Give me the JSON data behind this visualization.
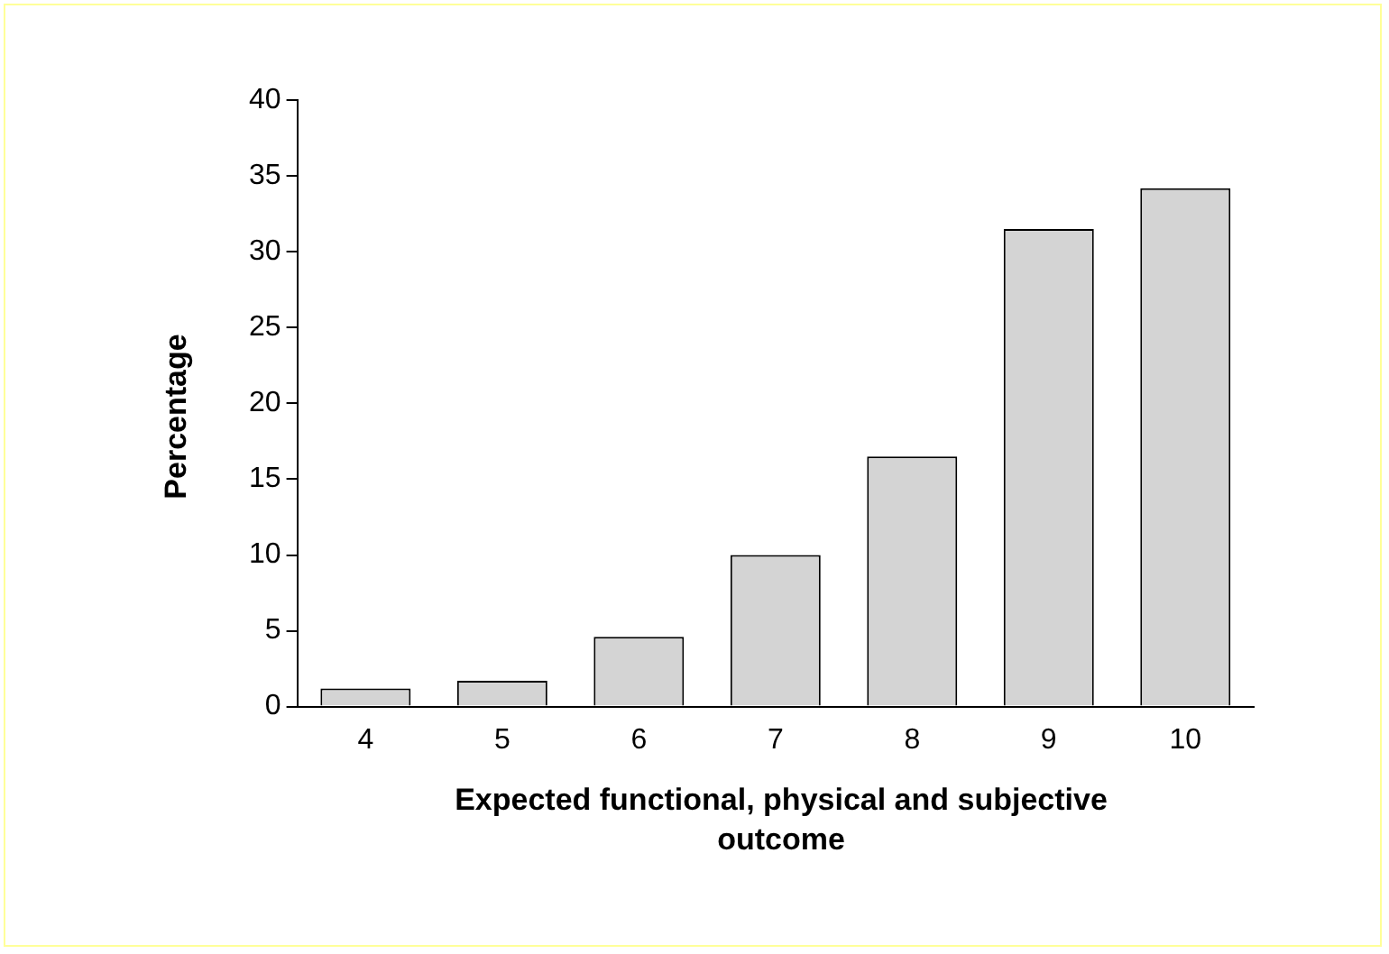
{
  "chart_data": {
    "type": "bar",
    "xlabel": "Expected functional, physical and subjective outcome",
    "ylabel": "Percentage",
    "categories": [
      "4",
      "5",
      "6",
      "7",
      "8",
      "9",
      "10"
    ],
    "values": [
      1.2,
      1.7,
      4.6,
      10.0,
      16.5,
      31.5,
      34.2
    ],
    "color": "#d4d4d4",
    "ylim": [
      0,
      40
    ],
    "yticks": [
      0,
      5,
      10,
      15,
      20,
      25,
      30,
      35,
      40
    ],
    "grid": false,
    "legend": false
  }
}
